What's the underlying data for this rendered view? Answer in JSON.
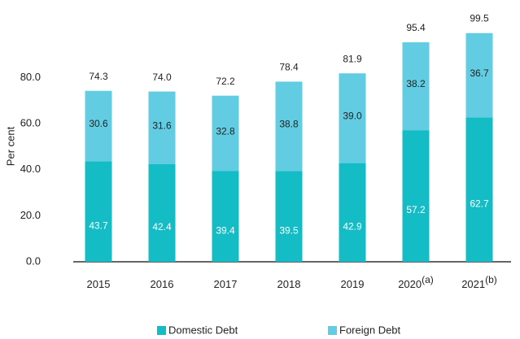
{
  "chart_data": {
    "type": "stacked_bar",
    "y_label": "Per cent",
    "categories": [
      "2015",
      "2016",
      "2017",
      "2018",
      "2019",
      "2020",
      "2021"
    ],
    "category_notes": {
      "5": "(a)",
      "6": "(b)"
    },
    "series": [
      {
        "name": "Domestic Debt",
        "color": "#14bdc5",
        "values": [
          43.7,
          42.4,
          39.4,
          39.5,
          42.9,
          57.2,
          62.7
        ],
        "value_labels": [
          "43.7",
          "42.4",
          "39.4",
          "39.5",
          "42.9",
          "57.2",
          "62.7"
        ]
      },
      {
        "name": "Foreign Debt",
        "color": "#62cde2",
        "values": [
          30.6,
          31.6,
          32.8,
          38.8,
          39.0,
          38.2,
          36.7
        ],
        "value_labels": [
          "30.6",
          "31.6",
          "32.8",
          "38.8",
          "39.0",
          "38.2",
          "36.7"
        ]
      }
    ],
    "totals": [
      74.3,
      74.0,
      72.2,
      78.4,
      81.9,
      95.4,
      99.5
    ],
    "total_labels": [
      "74.3",
      "74.0",
      "72.2",
      "78.4",
      "81.9",
      "95.4",
      "99.5"
    ],
    "ylim": [
      0,
      100
    ],
    "yticks": [
      {
        "value": 0,
        "label": "0.0"
      },
      {
        "value": 20,
        "label": "20.0"
      },
      {
        "value": 40,
        "label": "40.0"
      },
      {
        "value": 60,
        "label": "60.0"
      },
      {
        "value": 80,
        "label": "80.0"
      }
    ],
    "grid": false,
    "legend": "bottom"
  }
}
